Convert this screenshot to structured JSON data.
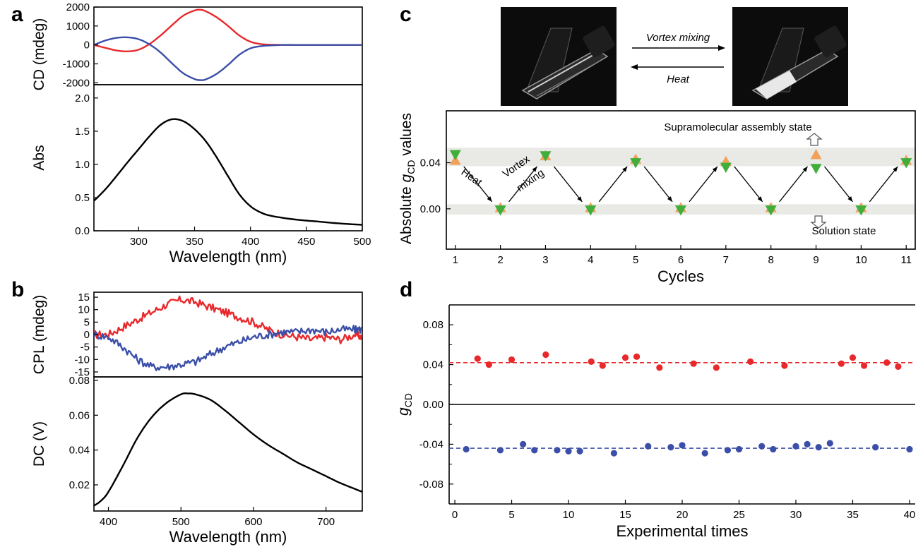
{
  "panel_labels": {
    "a": "a",
    "b": "b",
    "c": "c",
    "d": "d"
  },
  "colors": {
    "red": "#e8282b",
    "blue": "#3b4fa8",
    "black": "#000000",
    "green": "#3fae3a",
    "orange": "#f2a15a",
    "band": "#e9e9e5"
  },
  "chart_data": [
    {
      "id": "a-top",
      "type": "line",
      "ylabel": "CD (mdeg)",
      "xlim": [
        260,
        500
      ],
      "ylim": [
        -2100,
        2000
      ],
      "yticks": [
        "2000",
        "1000",
        "0",
        "-1000",
        "-2000"
      ],
      "ytick_values": [
        2000,
        1000,
        0,
        -1000,
        -2000
      ],
      "series": [
        {
          "color": "red",
          "x": [
            260,
            270,
            280,
            290,
            300,
            310,
            320,
            330,
            340,
            350,
            355,
            360,
            370,
            380,
            390,
            400,
            410,
            420,
            430,
            440,
            460,
            480,
            500
          ],
          "y": [
            0,
            -150,
            -290,
            -340,
            -250,
            60,
            520,
            1050,
            1550,
            1820,
            1860,
            1780,
            1450,
            1000,
            500,
            170,
            40,
            10,
            0,
            0,
            0,
            0,
            0
          ]
        },
        {
          "color": "blue",
          "x": [
            260,
            270,
            280,
            290,
            300,
            310,
            320,
            330,
            340,
            350,
            355,
            360,
            370,
            380,
            390,
            400,
            410,
            420,
            430,
            440,
            460,
            480,
            500
          ],
          "y": [
            0,
            230,
            370,
            400,
            300,
            20,
            -420,
            -980,
            -1500,
            -1800,
            -1860,
            -1820,
            -1520,
            -1050,
            -520,
            -180,
            -60,
            -20,
            0,
            0,
            0,
            0,
            0
          ]
        }
      ]
    },
    {
      "id": "a-bottom",
      "type": "line",
      "xlabel": "Wavelength (nm)",
      "ylabel": "Abs",
      "xlim": [
        260,
        500
      ],
      "ylim": [
        0,
        2.2
      ],
      "xticks": [
        "300",
        "350",
        "400",
        "450",
        "500"
      ],
      "xtick_values": [
        300,
        350,
        400,
        450,
        500
      ],
      "yticks": [
        "2.0",
        "1.5",
        "1.0",
        "0.5",
        "0.0"
      ],
      "ytick_values": [
        2.0,
        1.5,
        1.0,
        0.5,
        0.0
      ],
      "series": [
        {
          "color": "black",
          "x": [
            260,
            270,
            280,
            290,
            300,
            310,
            320,
            330,
            340,
            350,
            360,
            370,
            380,
            390,
            400,
            410,
            420,
            440,
            460,
            480,
            500
          ],
          "y": [
            0.45,
            0.62,
            0.82,
            1.03,
            1.23,
            1.43,
            1.6,
            1.68,
            1.65,
            1.53,
            1.35,
            1.1,
            0.82,
            0.55,
            0.37,
            0.27,
            0.22,
            0.17,
            0.14,
            0.11,
            0.09
          ]
        }
      ]
    },
    {
      "id": "b-top",
      "type": "line",
      "ylabel": "CPL (mdeg)",
      "xlim": [
        380,
        750
      ],
      "ylim": [
        -17,
        17
      ],
      "yticks": [
        "15",
        "10",
        "5",
        "0",
        "-5",
        "-10",
        "-15"
      ],
      "ytick_values": [
        15,
        10,
        5,
        0,
        -5,
        -10,
        -15
      ],
      "series": [
        {
          "color": "red",
          "x": [
            380,
            400,
            420,
            440,
            460,
            480,
            500,
            520,
            540,
            560,
            580,
            600,
            620,
            640,
            660,
            680,
            700,
            720,
            740,
            750
          ],
          "y": [
            0,
            0,
            3,
            6,
            9,
            12,
            14,
            13,
            11,
            9,
            7,
            5,
            2,
            0,
            -1,
            -2,
            -1,
            -2,
            0,
            -1
          ]
        },
        {
          "color": "blue",
          "x": [
            380,
            400,
            420,
            440,
            460,
            480,
            500,
            520,
            540,
            560,
            580,
            600,
            620,
            640,
            660,
            680,
            700,
            720,
            740,
            750
          ],
          "y": [
            0,
            -1,
            -5,
            -10,
            -13,
            -13,
            -12,
            -11,
            -8,
            -5,
            -3,
            -1,
            0,
            1,
            1,
            2,
            1,
            2,
            2,
            2
          ]
        }
      ]
    },
    {
      "id": "b-bottom",
      "type": "line",
      "xlabel": "Wavelength (nm)",
      "ylabel": "DC (V)",
      "xlim": [
        380,
        750
      ],
      "ylim": [
        0.005,
        0.082
      ],
      "xticks": [
        "400",
        "500",
        "600",
        "700"
      ],
      "xtick_values": [
        400,
        500,
        600,
        700
      ],
      "yticks": [
        "0.08",
        "0.06",
        "0.04",
        "0.02"
      ],
      "ytick_values": [
        0.08,
        0.06,
        0.04,
        0.02
      ],
      "series": [
        {
          "color": "black",
          "x": [
            380,
            390,
            400,
            420,
            440,
            460,
            480,
            500,
            510,
            520,
            540,
            560,
            580,
            600,
            620,
            640,
            660,
            680,
            700,
            720,
            750
          ],
          "y": [
            0.008,
            0.011,
            0.016,
            0.031,
            0.047,
            0.059,
            0.067,
            0.072,
            0.0725,
            0.072,
            0.069,
            0.063,
            0.056,
            0.049,
            0.043,
            0.038,
            0.033,
            0.029,
            0.025,
            0.021,
            0.016
          ]
        }
      ]
    },
    {
      "id": "c",
      "type": "scatter",
      "xlabel": "Cycles",
      "ylabel": "Absolute g_CD values",
      "xlim": [
        0.8,
        11.2
      ],
      "ylim": [
        -0.035,
        0.085
      ],
      "xticks": [
        "1",
        "2",
        "3",
        "4",
        "5",
        "6",
        "7",
        "8",
        "9",
        "10",
        "11"
      ],
      "xtick_values": [
        1,
        2,
        3,
        4,
        5,
        6,
        7,
        8,
        9,
        10,
        11
      ],
      "yticks": [
        "0.04",
        "0.00"
      ],
      "ytick_values": [
        0.04,
        0.0
      ],
      "bands": [
        [
          0.037,
          0.053
        ],
        [
          -0.005,
          0.004
        ]
      ],
      "series": [
        {
          "marker": "triangle-up",
          "color": "orange",
          "x": [
            1,
            2,
            3,
            4,
            5,
            6,
            7,
            8,
            9,
            10,
            11
          ],
          "y": [
            0.042,
            0.001,
            0.046,
            0.001,
            0.043,
            0.001,
            0.041,
            0.001,
            0.047,
            0.001,
            0.042
          ]
        },
        {
          "marker": "triangle-down",
          "color": "green",
          "x": [
            1,
            2,
            3,
            4,
            5,
            6,
            7,
            8,
            9,
            10,
            11
          ],
          "y": [
            0.047,
            -0.001,
            0.046,
            -0.001,
            0.04,
            -0.001,
            0.036,
            -0.001,
            0.035,
            -0.001,
            0.04
          ]
        }
      ],
      "annotations": {
        "top_state": "Supramolecular assembly state",
        "bottom_state": "Solution state",
        "heat": "Heat",
        "vortex_line1": "Vortex",
        "vortex_line2": "mixing",
        "photo_forward": "Vortex mixing",
        "photo_back": "Heat"
      }
    },
    {
      "id": "d",
      "type": "scatter",
      "xlabel": "Experimental times",
      "ylabel": "g_CD",
      "xlim": [
        -0.5,
        40.5
      ],
      "ylim": [
        -0.1,
        0.1
      ],
      "xticks": [
        "0",
        "5",
        "10",
        "15",
        "20",
        "25",
        "30",
        "35",
        "40"
      ],
      "xtick_values": [
        0,
        5,
        10,
        15,
        20,
        25,
        30,
        35,
        40
      ],
      "yticks": [
        "0.08",
        "0.04",
        "0.00",
        "-0.04",
        "-0.08"
      ],
      "ytick_values": [
        0.08,
        0.04,
        0.0,
        -0.04,
        -0.08
      ],
      "mean_lines": [
        {
          "color": "red",
          "y": 0.042
        },
        {
          "color": "blue",
          "y": -0.044
        }
      ],
      "series": [
        {
          "color": "red",
          "x": [
            2,
            3,
            5,
            8,
            12,
            13,
            15,
            16,
            18,
            21,
            23,
            26,
            29,
            34,
            35,
            36,
            38,
            39
          ],
          "y": [
            0.046,
            0.04,
            0.045,
            0.05,
            0.043,
            0.039,
            0.047,
            0.048,
            0.037,
            0.041,
            0.037,
            0.043,
            0.039,
            0.041,
            0.047,
            0.039,
            0.042,
            0.038
          ]
        },
        {
          "color": "blue",
          "x": [
            1,
            4,
            6,
            7,
            9,
            10,
            11,
            14,
            17,
            19,
            20,
            22,
            24,
            25,
            27,
            28,
            30,
            31,
            32,
            33,
            37,
            40
          ],
          "y": [
            -0.045,
            -0.046,
            -0.04,
            -0.046,
            -0.046,
            -0.047,
            -0.047,
            -0.049,
            -0.042,
            -0.043,
            -0.041,
            -0.049,
            -0.046,
            -0.045,
            -0.042,
            -0.045,
            -0.042,
            -0.04,
            -0.043,
            -0.039,
            -0.043,
            -0.045
          ]
        }
      ]
    }
  ]
}
